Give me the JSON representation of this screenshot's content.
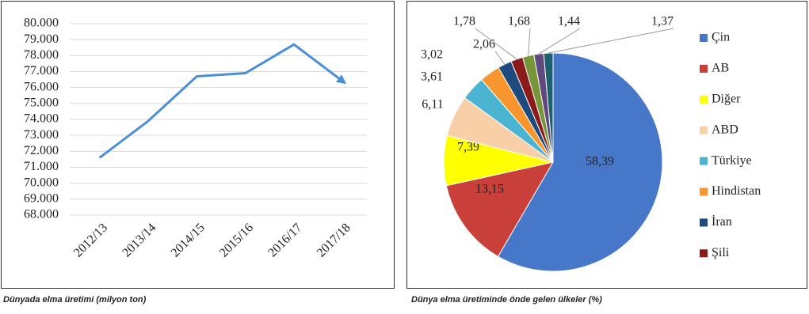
{
  "chart_data": [
    {
      "type": "line",
      "caption": "Dünyada elma üretimi (milyon ton)",
      "categories": [
        "2012/13",
        "2013/14",
        "2014/15",
        "2015/16",
        "2016/17",
        "2017/18"
      ],
      "values": [
        71600,
        73900,
        76700,
        76900,
        78700,
        76400
      ],
      "color": "#4a8fd6",
      "ylim": [
        68000,
        80000
      ],
      "yticks": [
        {
          "value": 68000,
          "label": "68.000"
        },
        {
          "value": 69000,
          "label": "69.000"
        },
        {
          "value": 70000,
          "label": "70.000"
        },
        {
          "value": 71000,
          "label": "71.000"
        },
        {
          "value": 72000,
          "label": "72.000"
        },
        {
          "value": 73000,
          "label": "73.000"
        },
        {
          "value": 74000,
          "label": "74.000"
        },
        {
          "value": 75000,
          "label": "75.000"
        },
        {
          "value": 76000,
          "label": "76.000"
        },
        {
          "value": 77000,
          "label": "77.000"
        },
        {
          "value": 78000,
          "label": "78.000"
        },
        {
          "value": 79000,
          "label": "79.000"
        },
        {
          "value": 80000,
          "label": "80.000"
        }
      ],
      "grid": true
    },
    {
      "type": "pie",
      "caption": "Dünya elma üretiminde önde gelen ülkeler (%)",
      "categories": [
        "Çin",
        "AB",
        "Diğer",
        "ABD",
        "Türkiye",
        "Hindistan",
        "İran",
        "Şili",
        null,
        null,
        null
      ],
      "values": [
        58.39,
        13.15,
        7.39,
        6.11,
        3.61,
        3.02,
        2.06,
        1.78,
        1.68,
        1.44,
        1.37
      ],
      "value_labels": [
        "58,39",
        "13,15",
        "7,39",
        "6,11",
        "3,61",
        "3,02",
        "2,06",
        "1,78",
        "1,68",
        "1,44",
        "1,37"
      ],
      "colors": [
        "#4677c8",
        "#c9403a",
        "#ffff00",
        "#f9cfa8",
        "#4bb4d0",
        "#f7962f",
        "#1f4a7e",
        "#8b1b1b",
        "#77963a",
        "#5f4a80",
        "#1f6070"
      ],
      "legend": "right"
    }
  ]
}
